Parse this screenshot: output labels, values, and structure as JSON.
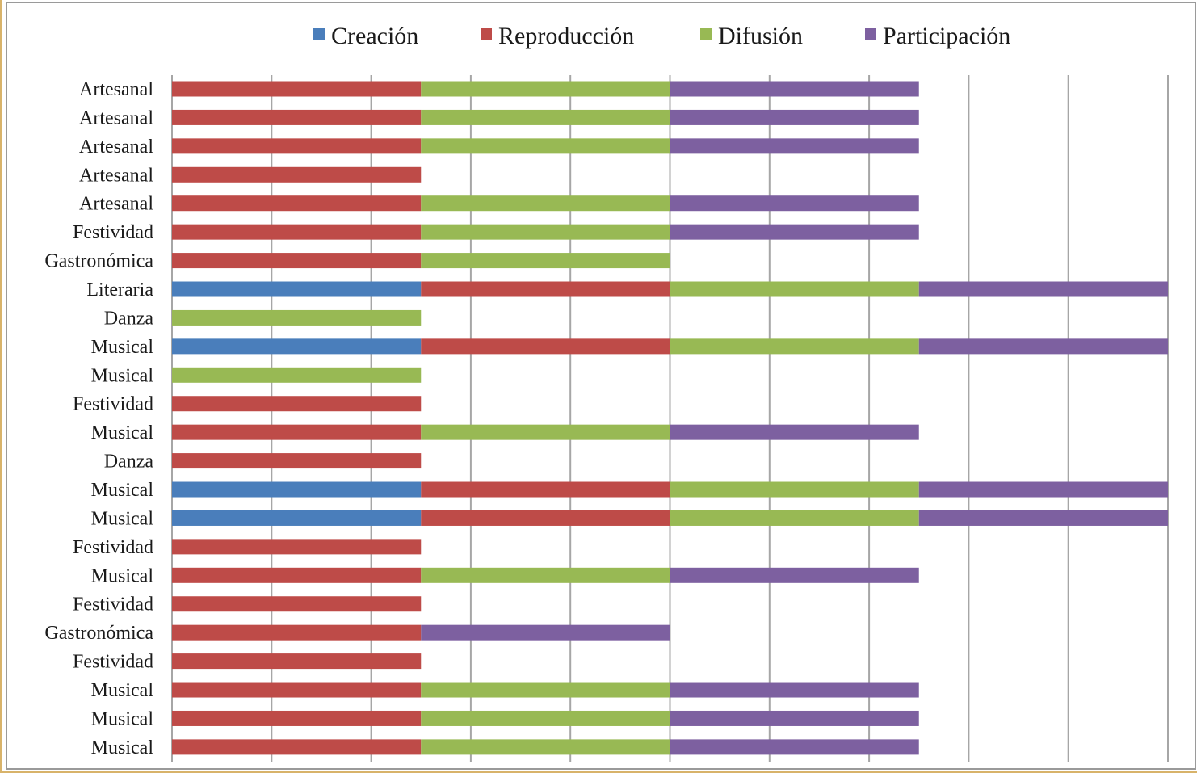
{
  "chart_data": {
    "type": "bar",
    "orientation": "horizontal",
    "stacked": true,
    "categories": [
      "Artesanal",
      "Artesanal",
      "Artesanal",
      "Artesanal",
      "Artesanal",
      "Festividad",
      "Gastronómica",
      "Literaria",
      "Danza",
      "Musical",
      "Musical",
      "Festividad",
      "Musical",
      "Danza",
      "Musical",
      "Musical",
      "Festividad",
      "Musical",
      "Festividad",
      "Gastronómica",
      "Festividad",
      "Musical",
      "Musical",
      "Musical"
    ],
    "series": [
      {
        "name": "Creación",
        "color": "#4a7ebb",
        "values": [
          0,
          0,
          0,
          0,
          0,
          0,
          0,
          1,
          0,
          1,
          0,
          0,
          0,
          0,
          1,
          1,
          0,
          0,
          0,
          0,
          0,
          0,
          0,
          0
        ]
      },
      {
        "name": "Reproducción",
        "color": "#be4b48",
        "values": [
          1,
          1,
          1,
          1,
          1,
          1,
          1,
          1,
          0,
          1,
          0,
          1,
          1,
          1,
          1,
          1,
          1,
          1,
          1,
          1,
          1,
          1,
          1,
          1
        ]
      },
      {
        "name": "Difusión",
        "color": "#98b954",
        "values": [
          1,
          1,
          1,
          0,
          1,
          1,
          1,
          1,
          1,
          1,
          1,
          0,
          1,
          0,
          1,
          1,
          0,
          1,
          0,
          0,
          0,
          1,
          1,
          1
        ]
      },
      {
        "name": "Participación",
        "color": "#7d60a0",
        "values": [
          1,
          1,
          1,
          0,
          1,
          1,
          0,
          1,
          0,
          1,
          0,
          0,
          1,
          0,
          1,
          1,
          0,
          1,
          0,
          1,
          0,
          1,
          1,
          1
        ]
      }
    ],
    "xlim": [
      0,
      4
    ],
    "legend_position": "top",
    "grid": true
  }
}
